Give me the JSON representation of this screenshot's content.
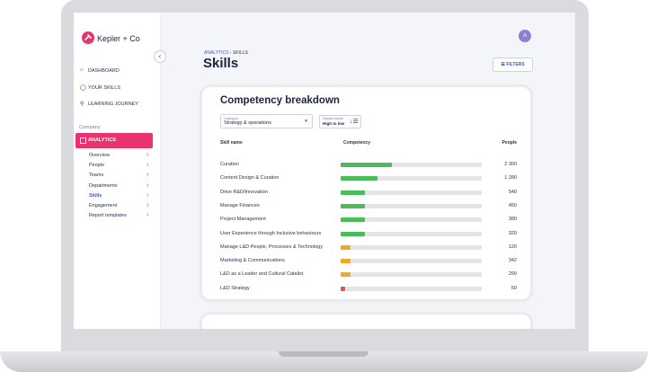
{
  "header": {
    "brand": "Kepler + Co",
    "avatar": "A",
    "breadcrumb": [
      "ANALYTICS",
      "SKILLS"
    ],
    "title": "Skills",
    "filters": "FILTERS"
  },
  "nav": {
    "main": [
      "DASHBOARD",
      "YOUR SKILLS",
      "LEARNING JOURNEY"
    ],
    "section": "Company",
    "active": "ANALYTICS",
    "sub": [
      "Overview",
      "People",
      "Teams",
      "Departments",
      "Skills",
      "Engagement",
      "Report templates"
    ],
    "current_sub": 4
  },
  "card": {
    "title": "Competency breakdown",
    "category_label": "Category",
    "category_value": "Strategy & operations",
    "sort_label": "Display results",
    "sort_value": "High to low",
    "columns": [
      "Skill name",
      "Competency",
      "People"
    ],
    "rows": [
      {
        "skill": "Curation",
        "competency": 36,
        "people": "2 300",
        "color": "#4cbb5a"
      },
      {
        "skill": "Content Design & Curation",
        "competency": 26,
        "people": "1 280",
        "color": "#4cbb5a"
      },
      {
        "skill": "Drive R&D/Innovation",
        "competency": 17,
        "people": "540",
        "color": "#4cbb5a"
      },
      {
        "skill": "Manage Finances",
        "competency": 17,
        "people": "450",
        "color": "#4cbb5a"
      },
      {
        "skill": "Project Management",
        "competency": 17,
        "people": "380",
        "color": "#4cbb5a"
      },
      {
        "skill": "User Experience through Inclusive behaviours",
        "competency": 17,
        "people": "320",
        "color": "#4cbb5a"
      },
      {
        "skill": "Manage L&D People, Processes & Technology",
        "competency": 7,
        "people": "120",
        "color": "#f5a623"
      },
      {
        "skill": "Marketing & Communications",
        "competency": 7,
        "people": "342",
        "color": "#f5a623"
      },
      {
        "skill": "L&D as a Leader and Cultural Catalist",
        "competency": 7,
        "people": "299",
        "color": "#f5a623"
      },
      {
        "skill": "L&D Strategy",
        "competency": 3,
        "people": "50",
        "color": "#e8504a"
      }
    ]
  }
}
